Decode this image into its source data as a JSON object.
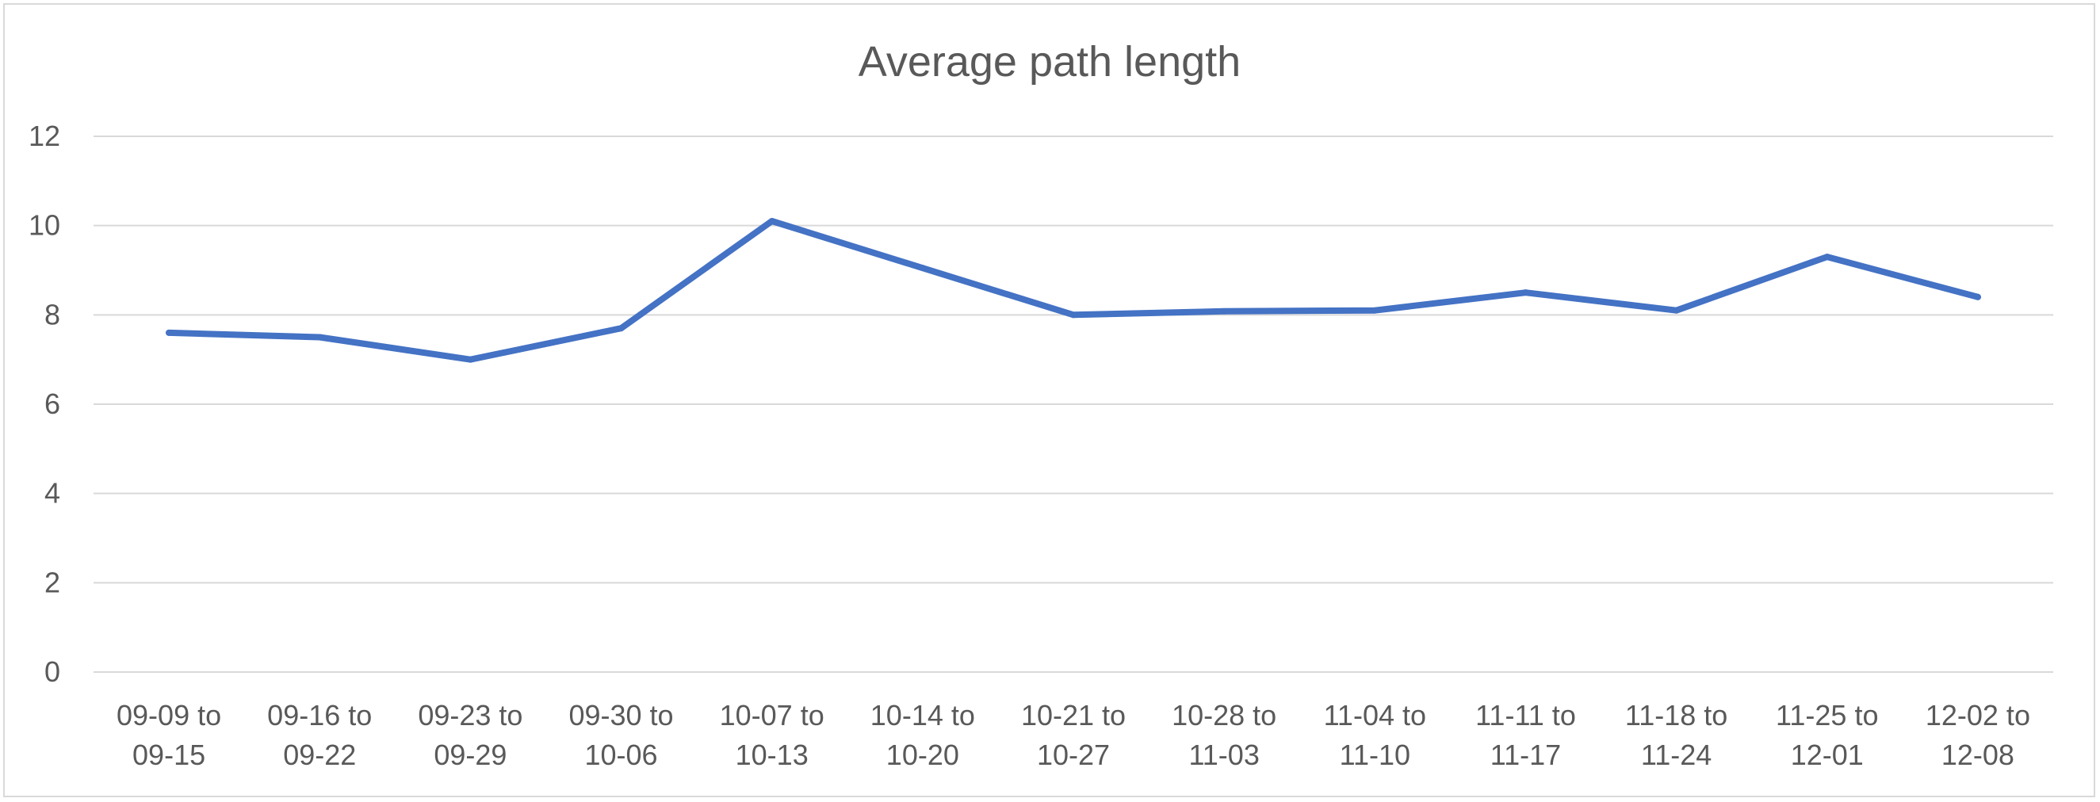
{
  "chart_data": {
    "type": "line",
    "title": "Average path length",
    "xlabel": "",
    "ylabel": "",
    "categories": [
      "09-09 to 09-15",
      "09-16 to 09-22",
      "09-23 to 09-29",
      "09-30 to 10-06",
      "10-07 to 10-13",
      "10-14 to 10-20",
      "10-21 to 10-27",
      "10-28 to 11-03",
      "11-04 to 11-10",
      "11-11 to 11-17",
      "11-18 to 11-24",
      "11-25 to 12-01",
      "12-02 to 12-08"
    ],
    "series": [
      {
        "values": [
          7.6,
          7.5,
          7.0,
          7.7,
          10.1,
          9.05,
          8.0,
          8.08,
          8.1,
          8.5,
          8.1,
          9.3,
          8.4
        ],
        "color": "#4472c4"
      }
    ],
    "ylim": [
      0,
      12
    ],
    "yticks": [
      0,
      2,
      4,
      6,
      8,
      10,
      12
    ],
    "grid": true,
    "legend": "none"
  }
}
